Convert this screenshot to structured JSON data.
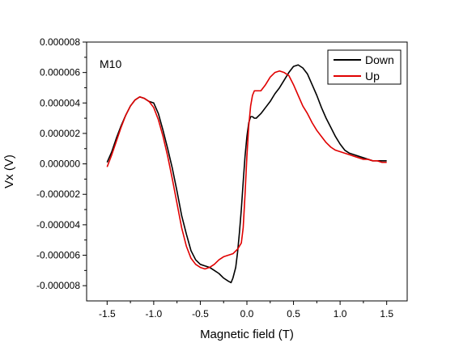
{
  "chart_data": {
    "type": "line",
    "title": "",
    "xlabel": "Magnetic field (T)",
    "ylabel": "Vx (V)",
    "xlim": [
      -1.72,
      1.72
    ],
    "ylim": [
      -9e-06,
      8e-06
    ],
    "x_ticks": [
      -1.5,
      -1.0,
      -0.5,
      0.0,
      0.5,
      1.0,
      1.5
    ],
    "x_tick_labels": [
      "-1.5",
      "-1.0",
      "-0.5",
      "0.0",
      "0.5",
      "1.0",
      "1.5"
    ],
    "y_ticks": [
      8e-06,
      6e-06,
      4e-06,
      2e-06,
      0.0,
      -2e-06,
      -4e-06,
      -6e-06,
      -8e-06
    ],
    "y_tick_labels": [
      "0.000008",
      "0.000006",
      "0.000004",
      "0.000002",
      "0.000000",
      "-0.000002",
      "-0.000004",
      "-0.000006",
      "-0.000008"
    ],
    "grid": false,
    "legend_position": "top-right",
    "annotation": "M10",
    "series": [
      {
        "name": "Down",
        "color": "#000000",
        "x": [
          -1.5,
          -1.45,
          -1.4,
          -1.35,
          -1.3,
          -1.25,
          -1.2,
          -1.15,
          -1.1,
          -1.05,
          -1.0,
          -0.95,
          -0.9,
          -0.85,
          -0.8,
          -0.75,
          -0.7,
          -0.65,
          -0.6,
          -0.55,
          -0.5,
          -0.45,
          -0.4,
          -0.35,
          -0.3,
          -0.25,
          -0.2,
          -0.17,
          -0.15,
          -0.12,
          -0.1,
          -0.08,
          -0.06,
          -0.04,
          -0.02,
          0.0,
          0.02,
          0.04,
          0.06,
          0.08,
          0.1,
          0.15,
          0.2,
          0.25,
          0.3,
          0.35,
          0.4,
          0.45,
          0.5,
          0.55,
          0.6,
          0.65,
          0.7,
          0.75,
          0.8,
          0.85,
          0.9,
          0.95,
          1.0,
          1.05,
          1.1,
          1.15,
          1.2,
          1.25,
          1.3,
          1.35,
          1.4,
          1.45,
          1.5
        ],
        "y": [
          1e-07,
          8e-07,
          1.7e-06,
          2.5e-06,
          3.2e-06,
          3.8e-06,
          4.2e-06,
          4.4e-06,
          4.3e-06,
          4.1e-06,
          4e-06,
          3.3e-06,
          2.2e-06,
          1e-06,
          -3e-07,
          -1.8e-06,
          -3.4e-06,
          -4.6e-06,
          -5.7e-06,
          -6.3e-06,
          -6.6e-06,
          -6.7e-06,
          -6.8e-06,
          -7e-06,
          -7.2e-06,
          -7.5e-06,
          -7.7e-06,
          -7.8e-06,
          -7.5e-06,
          -6.8e-06,
          -5.8e-06,
          -4.5e-06,
          -3e-06,
          -1.2e-06,
          5e-07,
          1.8e-06,
          2.7e-06,
          3.1e-06,
          3.1e-06,
          3e-06,
          3e-06,
          3.3e-06,
          3.7e-06,
          4.1e-06,
          4.6e-06,
          5e-06,
          5.5e-06,
          6e-06,
          6.4e-06,
          6.5e-06,
          6.3e-06,
          5.9e-06,
          5.2e-06,
          4.5e-06,
          3.7e-06,
          3e-06,
          2.4e-06,
          1.8e-06,
          1.3e-06,
          9e-07,
          7e-07,
          6e-07,
          5e-07,
          4e-07,
          3e-07,
          2e-07,
          2e-07,
          2e-07,
          2e-07
        ]
      },
      {
        "name": "Up",
        "color": "#e00000",
        "x": [
          -1.5,
          -1.45,
          -1.4,
          -1.35,
          -1.3,
          -1.25,
          -1.2,
          -1.15,
          -1.1,
          -1.05,
          -1.0,
          -0.95,
          -0.9,
          -0.85,
          -0.8,
          -0.75,
          -0.7,
          -0.65,
          -0.6,
          -0.55,
          -0.5,
          -0.45,
          -0.4,
          -0.35,
          -0.3,
          -0.25,
          -0.2,
          -0.15,
          -0.1,
          -0.06,
          -0.04,
          -0.02,
          0.0,
          0.02,
          0.04,
          0.06,
          0.08,
          0.1,
          0.15,
          0.2,
          0.25,
          0.3,
          0.35,
          0.4,
          0.45,
          0.5,
          0.55,
          0.6,
          0.65,
          0.7,
          0.75,
          0.8,
          0.85,
          0.9,
          0.95,
          1.0,
          1.05,
          1.1,
          1.15,
          1.2,
          1.25,
          1.3,
          1.35,
          1.4,
          1.45,
          1.5
        ],
        "y": [
          -2e-07,
          6e-07,
          1.5e-06,
          2.4e-06,
          3.2e-06,
          3.8e-06,
          4.2e-06,
          4.4e-06,
          4.3e-06,
          4.1e-06,
          3.7e-06,
          2.9e-06,
          1.8e-06,
          5e-07,
          -1e-06,
          -2.6e-06,
          -4.2e-06,
          -5.4e-06,
          -6.2e-06,
          -6.6e-06,
          -6.8e-06,
          -6.9e-06,
          -6.8e-06,
          -6.6e-06,
          -6.3e-06,
          -6.1e-06,
          -6e-06,
          -5.9e-06,
          -5.6e-06,
          -5.2e-06,
          -4.2e-06,
          -2e-06,
          5e-07,
          2.5e-06,
          3.8e-06,
          4.5e-06,
          4.8e-06,
          4.8e-06,
          4.8e-06,
          5.2e-06,
          5.7e-06,
          6e-06,
          6.1e-06,
          6e-06,
          5.8e-06,
          5.2e-06,
          4.5e-06,
          3.8e-06,
          3.3e-06,
          2.7e-06,
          2.2e-06,
          1.8e-06,
          1.4e-06,
          1.1e-06,
          9e-07,
          8e-07,
          7e-07,
          6e-07,
          5e-07,
          4e-07,
          3e-07,
          3e-07,
          2e-07,
          2e-07,
          1e-07,
          1e-07
        ]
      }
    ]
  }
}
